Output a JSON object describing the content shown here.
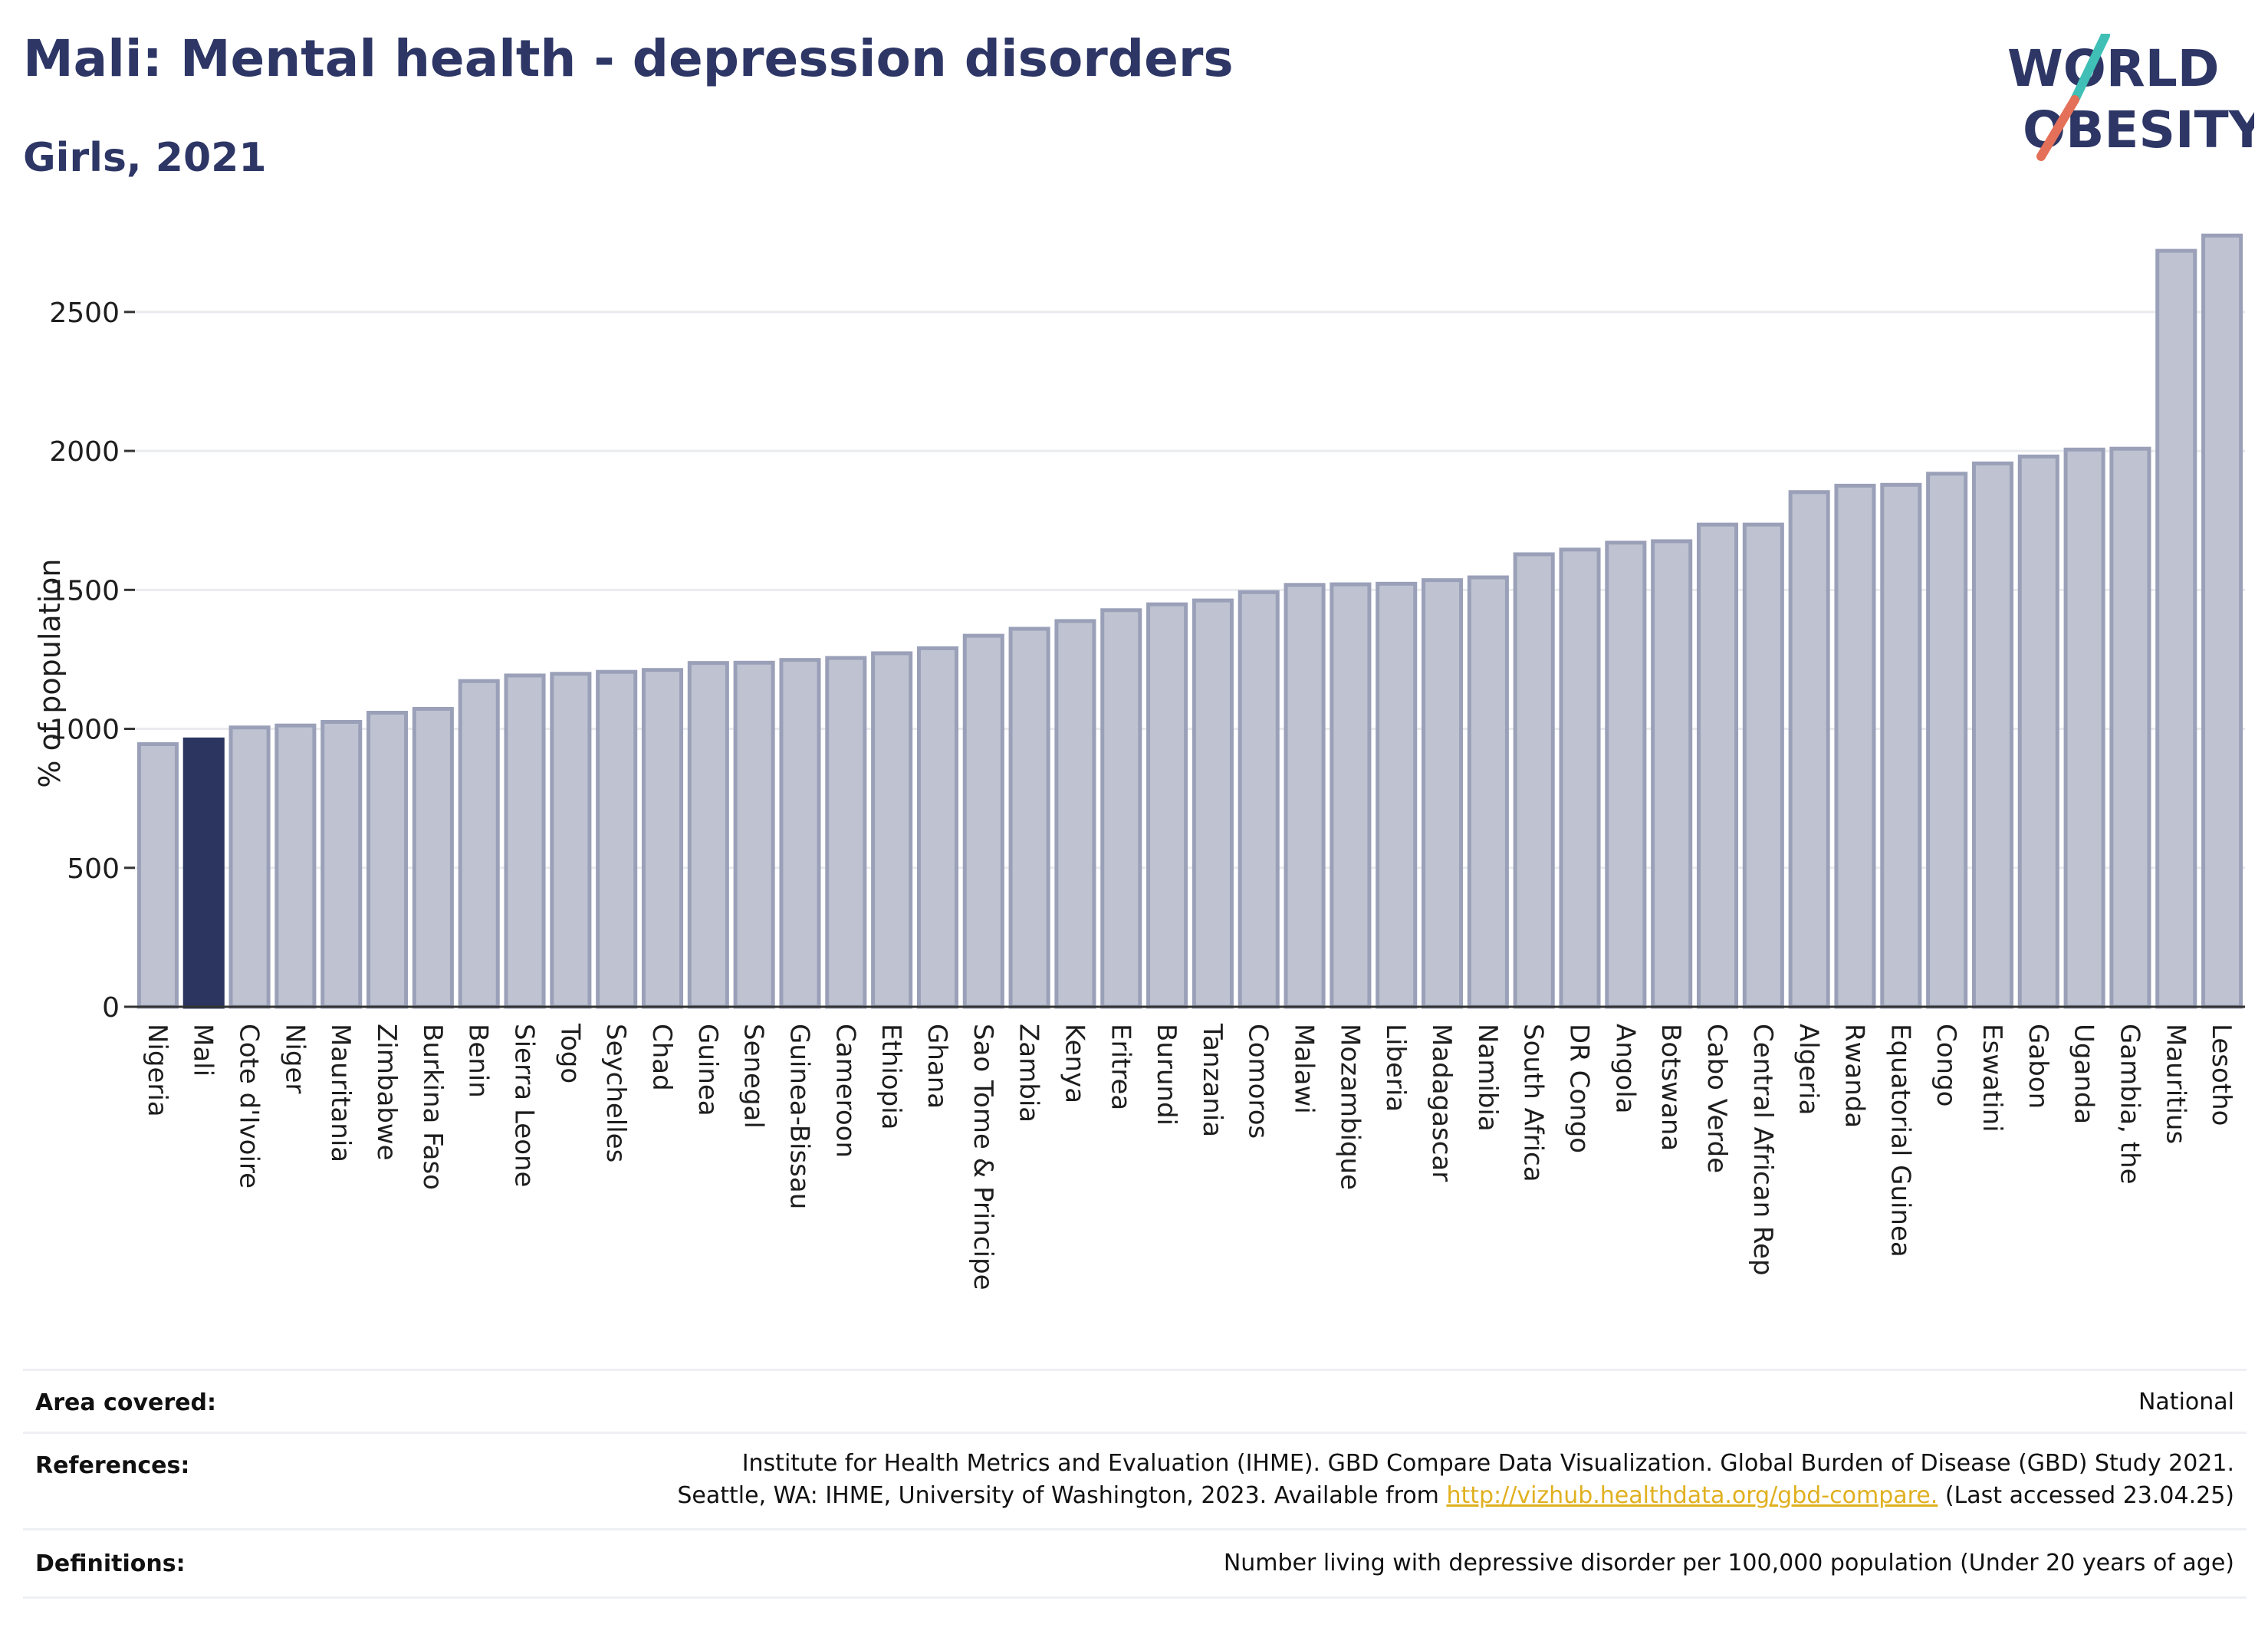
{
  "header": {
    "title": "Mali: Mental health - depression disorders",
    "subtitle": "Girls, 2021",
    "logo_line1": "WORLD",
    "logo_line2": "OBESITY"
  },
  "colors": {
    "highlight": "#2b3560",
    "bar_fill": "#bfc3d1",
    "bar_stroke": "#9aa0b8",
    "logo_teal": "#3fbfb5",
    "logo_coral": "#e4705a",
    "link": "#e0b020"
  },
  "chart_data": {
    "type": "bar",
    "title": "Mali: Mental health - depression disorders",
    "subtitle": "Girls, 2021",
    "ylabel": "% of population",
    "xlabel": "",
    "ylim": [
      0,
      2850
    ],
    "yticks": [
      0,
      500,
      1000,
      1500,
      2000,
      2500
    ],
    "grid": true,
    "highlight": "Mali",
    "categories": [
      "Nigeria",
      "Mali",
      "Cote d'Ivoire",
      "Niger",
      "Mauritania",
      "Zimbabwe",
      "Burkina Faso",
      "Benin",
      "Sierra Leone",
      "Togo",
      "Seychelles",
      "Chad",
      "Guinea",
      "Senegal",
      "Guinea-Bissau",
      "Cameroon",
      "Ethiopia",
      "Ghana",
      "Sao Tome & Principe",
      "Zambia",
      "Kenya",
      "Eritrea",
      "Burundi",
      "Tanzania",
      "Comoros",
      "Malawi",
      "Mozambique",
      "Liberia",
      "Madagascar",
      "Namibia",
      "South Africa",
      "DR Congo",
      "Angola",
      "Botswana",
      "Cabo Verde",
      "Central African Rep",
      "Algeria",
      "Rwanda",
      "Equatorial Guinea",
      "Congo",
      "Eswatini",
      "Gabon",
      "Uganda",
      "Gambia, the",
      "Mauritius",
      "Lesotho"
    ],
    "values": [
      945,
      962,
      1005,
      1012,
      1025,
      1058,
      1072,
      1172,
      1192,
      1198,
      1205,
      1212,
      1237,
      1238,
      1248,
      1255,
      1272,
      1290,
      1335,
      1360,
      1388,
      1427,
      1448,
      1462,
      1492,
      1518,
      1520,
      1522,
      1535,
      1545,
      1628,
      1645,
      1670,
      1675,
      1735,
      1735,
      1852,
      1875,
      1878,
      1918,
      1955,
      1980,
      2005,
      2008,
      2720,
      2775
    ]
  },
  "footer": {
    "area_label": "Area covered:",
    "area_value": "National",
    "references_label": "References:",
    "references_line1": "Institute for Health Metrics and Evaluation (IHME). GBD Compare Data Visualization. Global Burden of Disease (GBD) Study 2021.",
    "references_line2_pre": "Seattle, WA: IHME, University of Washington, 2023. Available from ",
    "references_link": "http://vizhub.healthdata.org/gbd-compare.",
    "references_line2_post": " (Last accessed 23.04.25)",
    "definitions_label": "Definitions:",
    "definitions_value": "Number living with depressive disorder per 100,000 population (Under 20 years of age)"
  }
}
